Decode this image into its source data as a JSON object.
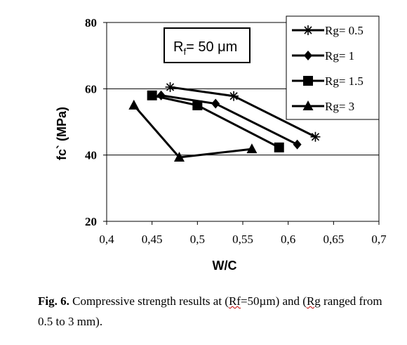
{
  "chart_data": {
    "type": "line",
    "xlabel": "W/C",
    "ylabel": "fc` (MPa)",
    "xlim": [
      0.4,
      0.7
    ],
    "ylim": [
      20,
      80
    ],
    "x_ticks": [
      "0,4",
      "0,45",
      "0,5",
      "0,55",
      "0,6",
      "0,65",
      "0,7"
    ],
    "y_ticks": [
      "20",
      "40",
      "60",
      "80"
    ],
    "annotation": {
      "main": "R",
      "sub": "f",
      "rest": "= 50 μm"
    },
    "legend_position": "top-right",
    "grid": "horizontal",
    "series": [
      {
        "name": "Rg= 0.5",
        "marker": "star",
        "x": [
          0.47,
          0.54,
          0.63
        ],
        "y": [
          60.5,
          57.8,
          45.5
        ]
      },
      {
        "name": "Rg= 1",
        "marker": "diamond",
        "x": [
          0.46,
          0.52,
          0.61
        ],
        "y": [
          58.0,
          55.5,
          43.2
        ]
      },
      {
        "name": "Rg= 1.5",
        "marker": "square",
        "x": [
          0.45,
          0.5,
          0.59
        ],
        "y": [
          58.0,
          55.0,
          42.3
        ]
      },
      {
        "name": "Rg= 3",
        "marker": "triangle",
        "x": [
          0.43,
          0.48,
          0.56
        ],
        "y": [
          55.0,
          39.3,
          41.8
        ]
      }
    ]
  },
  "caption": {
    "fig_label": "Fig. 6.",
    "t1": " Compressive strength results at (",
    "rf": "Rf",
    "t2": "=50µm) and (",
    "rg": "Rg",
    "t3": " ranged from 0.5 to 3 mm)."
  }
}
